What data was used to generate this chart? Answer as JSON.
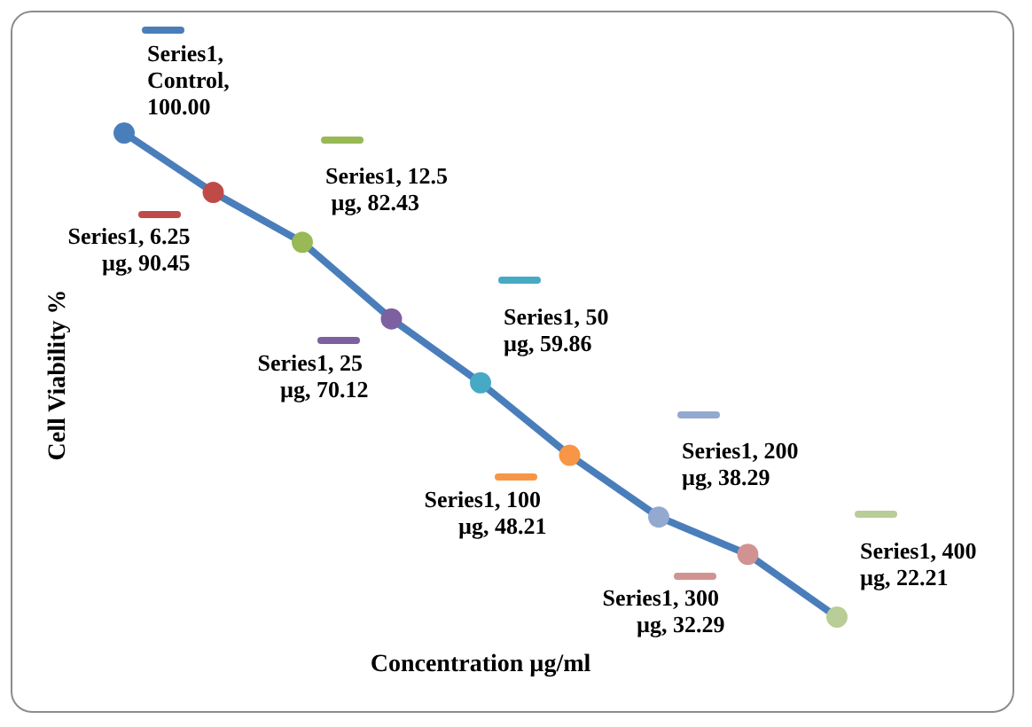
{
  "chart_data": {
    "type": "line",
    "xlabel": "Concentration µg/ml",
    "ylabel": "Cell Viability %",
    "categories": [
      null,
      null,
      null,
      null,
      null,
      null,
      null,
      null,
      null
    ],
    "series": [
      {
        "color": "#4a7ebb",
        "colors": [
          "#4a7ebb",
          "#be4b48",
          "#98b954",
          "#7d60a0",
          "#46aac5",
          "#f79646",
          "#93a9cf",
          "#d19392",
          "#b9cd96"
        ],
        "values": [
          100.0,
          90.45,
          82.43,
          70.12,
          59.86,
          48.21,
          38.29,
          32.29,
          22.21
        ],
        "value_labels": [
          "Series1, Control, 100.00",
          "Series1, 6.25 µg, 90.45",
          "Series1, 12.5 µg, 82.43",
          "Series1, 25 µg, 70.12",
          "Series1, 50 µg, 59.86",
          "Series1, 100 µg, 48.21",
          "Series1, 200 µg, 38.29",
          "Series1, 300 µg, 32.29",
          "Series1, 400 µg, 22.21"
        ]
      }
    ],
    "marker": "circle",
    "line_style": "solid",
    "grid": false,
    "tick_labels": false
  }
}
